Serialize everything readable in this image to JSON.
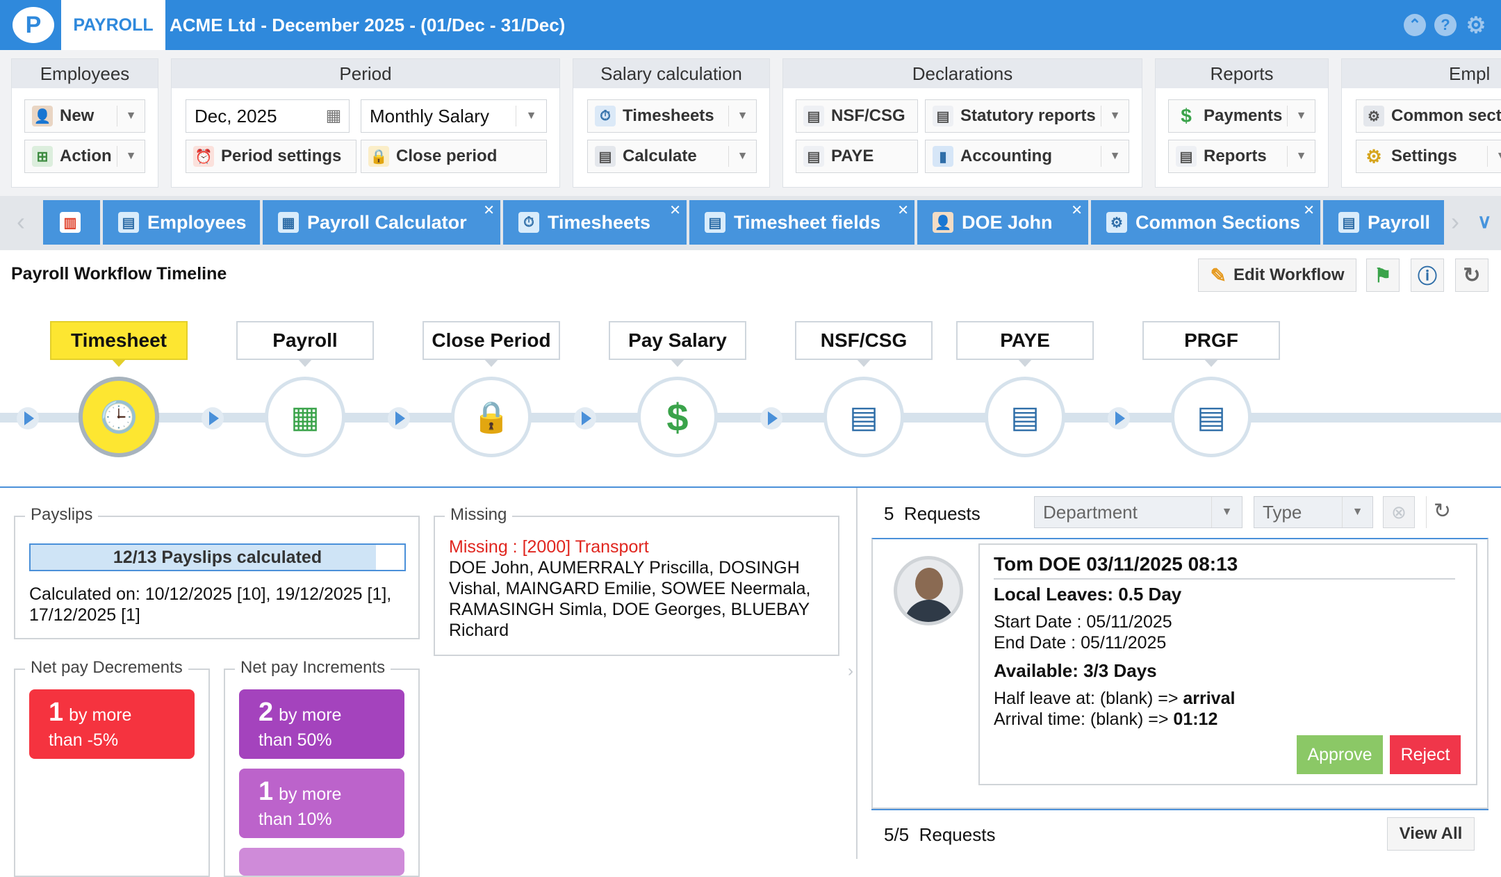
{
  "app": {
    "logo_text": "P",
    "module_tab": "PAYROLL",
    "window_title": "ACME Ltd - December 2025 - (01/Dec - 31/Dec)"
  },
  "ribbon": {
    "employees": {
      "title": "Employees",
      "new": "New",
      "action": "Action"
    },
    "period": {
      "title": "Period",
      "date_value": "Dec, 2025",
      "salary_type": "Monthly Salary",
      "period_settings": "Period settings",
      "close_period": "Close period"
    },
    "salary": {
      "title": "Salary calculation",
      "timesheets": "Timesheets",
      "calculate": "Calculate"
    },
    "declarations": {
      "title": "Declarations",
      "nsf": "NSF/CSG",
      "statutory": "Statutory reports",
      "paye": "PAYE",
      "accounting": "Accounting"
    },
    "reports": {
      "title": "Reports",
      "payments": "Payments",
      "reports": "Reports"
    },
    "empl": {
      "title": "Empl",
      "common": "Common sect",
      "settings": "Settings"
    }
  },
  "tabs": [
    {
      "label": "Employees"
    },
    {
      "label": "Payroll Calculator"
    },
    {
      "label": "Timesheets"
    },
    {
      "label": "Timesheet fields"
    },
    {
      "label": "DOE John"
    },
    {
      "label": "Common Sections"
    },
    {
      "label": "Payroll"
    }
  ],
  "workflow": {
    "title": "Payroll Workflow Timeline",
    "edit_label": "Edit Workflow",
    "steps": [
      "Timesheet",
      "Payroll",
      "Close Period",
      "Pay Salary",
      "NSF/CSG",
      "PAYE",
      "PRGF"
    ]
  },
  "payslips": {
    "legend": "Payslips",
    "progress_label": "12/13 Payslips calculated",
    "progress_fraction": 0.923,
    "calculated_on": "Calculated on:  10/12/2025 [10], 19/12/2025 [1], 17/12/2025 [1]"
  },
  "missing": {
    "legend": "Missing",
    "heading": "Missing : [2000] Transport",
    "names": "DOE John, AUMERRALY Priscilla, DOSINGH Vishal, MAINGARD Emilie, SOWEE Neermala, RAMASINGH Simla, DOE Georges, BLUEBAY Richard"
  },
  "decrements": {
    "legend": "Net pay Decrements",
    "items": [
      {
        "count": "1",
        "text1": "by more",
        "text2": "than -5%",
        "color": "#f5333f"
      }
    ]
  },
  "increments": {
    "legend": "Net pay Increments",
    "items": [
      {
        "count": "2",
        "text1": "by more",
        "text2": "than 50%",
        "color": "#a443bd"
      },
      {
        "count": "1",
        "text1": "by more",
        "text2": "than 10%",
        "color": "#bc63cb"
      }
    ]
  },
  "requests": {
    "count": "5",
    "label": "Requests",
    "department_placeholder": "Department",
    "type_placeholder": "Type",
    "card": {
      "title": "Tom DOE 03/11/2025 08:13",
      "leave": "Local Leaves: 0.5 Day",
      "start": "Start Date : 05/11/2025",
      "end": "End Date : 05/11/2025",
      "available": "Available: 3/3 Days",
      "half_prefix": "Half leave at: (blank) => ",
      "half_value": "arrival",
      "arrival_prefix": "Arrival time: (blank) => ",
      "arrival_value": "01:12",
      "approve": "Approve",
      "reject": "Reject"
    },
    "footer_count": "5/5",
    "footer_label": "Requests",
    "view_all": "View All"
  }
}
